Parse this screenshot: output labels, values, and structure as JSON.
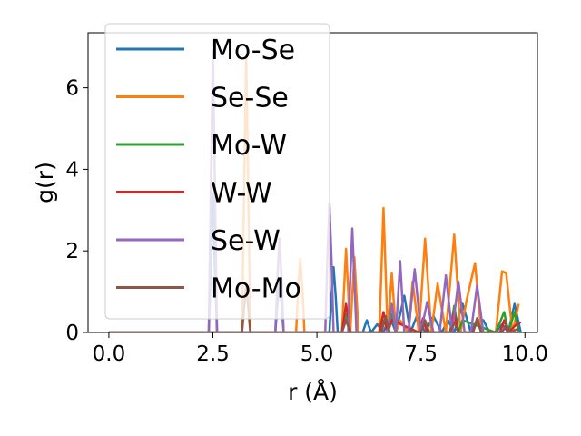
{
  "chart_data": {
    "type": "line",
    "xlabel": "r (Å)",
    "ylabel": "g(r)",
    "xlim": [
      -0.5,
      10.3
    ],
    "ylim": [
      0,
      7.35
    ],
    "xticks": [
      "0.0",
      "2.5",
      "5.0",
      "7.5",
      "10.0"
    ],
    "yticks": [
      "0",
      "2",
      "4",
      "6"
    ],
    "legend_position": "top-left",
    "grid": false,
    "series": [
      {
        "name": "Mo-Se",
        "color": "#1f77b4",
        "x": [
          0.0,
          2.4,
          2.45,
          2.5,
          2.55,
          2.6,
          4.0,
          4.05,
          4.1,
          4.15,
          4.2,
          5.3,
          5.35,
          5.4,
          5.45,
          5.5,
          6.1,
          6.2,
          6.3,
          6.45,
          6.6,
          6.75,
          6.9,
          7.1,
          7.25,
          7.4,
          7.6,
          7.8,
          8.0,
          8.15,
          8.3,
          8.5,
          8.7,
          8.85,
          9.0,
          9.15,
          9.3,
          9.45,
          9.6,
          9.75,
          9.9
        ],
        "y": [
          0,
          0,
          1.5,
          3.4,
          1.5,
          0,
          0,
          0.7,
          1.2,
          0.7,
          0,
          0,
          0.9,
          1.6,
          0.9,
          0,
          0,
          0.3,
          0,
          0.2,
          0,
          0.4,
          0,
          0.9,
          0,
          0.4,
          0,
          0.4,
          0,
          0.3,
          0,
          0.7,
          0,
          0.3,
          0.3,
          0,
          0,
          0.2,
          0,
          0.7,
          0
        ]
      },
      {
        "name": "Se-Se",
        "color": "#ff7f0e",
        "x": [
          0.0,
          3.2,
          3.25,
          3.3,
          3.35,
          3.4,
          4.5,
          4.55,
          4.6,
          4.65,
          4.7,
          5.6,
          5.7,
          5.8,
          5.9,
          6.0,
          6.5,
          6.6,
          6.7,
          6.8,
          6.9,
          7.0,
          7.2,
          7.3,
          7.45,
          7.6,
          7.75,
          7.9,
          8.1,
          8.3,
          8.45,
          8.6,
          8.8,
          8.95,
          9.1,
          9.3,
          9.45,
          9.55,
          9.7,
          9.85
        ],
        "y": [
          0,
          0,
          3.5,
          6.8,
          3.5,
          0,
          0,
          1.1,
          1.8,
          1.1,
          0,
          0,
          2.05,
          0,
          1.85,
          0,
          0,
          3.05,
          0,
          1.45,
          0,
          0.3,
          0,
          1.25,
          0,
          2.3,
          0,
          1.2,
          0,
          2.4,
          0,
          0.8,
          1.7,
          0,
          0,
          0,
          1.5,
          1.45,
          0,
          0.7
        ]
      },
      {
        "name": "Mo-W",
        "color": "#2ca02c",
        "x": [
          0.0,
          5.6,
          5.7,
          5.8,
          6.5,
          6.6,
          6.7,
          6.8,
          6.9,
          7.45,
          7.55,
          7.65,
          8.2,
          8.3,
          8.4,
          8.5,
          9.3,
          9.4,
          9.5,
          9.6,
          9.75,
          9.85
        ],
        "y": [
          0,
          0,
          0.45,
          0,
          0,
          0.3,
          0.1,
          0.45,
          0,
          0,
          0.3,
          0,
          0,
          0.65,
          0,
          0.3,
          0,
          0.25,
          0.5,
          0,
          0.5,
          0
        ]
      },
      {
        "name": "W-W",
        "color": "#d62728",
        "x": [
          0.0,
          5.6,
          5.7,
          5.8,
          6.5,
          6.6,
          6.7,
          6.8,
          7.45,
          7.55,
          7.65,
          8.2,
          8.3,
          8.4,
          8.75,
          8.85,
          8.95,
          9.4,
          9.5,
          9.6,
          9.8,
          9.9
        ],
        "y": [
          0,
          0,
          0.7,
          0,
          0,
          0.5,
          0,
          0.3,
          0,
          0.35,
          0,
          0,
          0.5,
          0,
          0,
          0.3,
          0,
          0,
          0.3,
          0,
          0.2,
          0.25
        ]
      },
      {
        "name": "Se-W",
        "color": "#9467bd",
        "x": [
          0.0,
          2.4,
          2.45,
          2.5,
          2.55,
          2.6,
          4.0,
          4.05,
          4.1,
          4.15,
          4.2,
          5.2,
          5.25,
          5.3,
          5.35,
          5.4,
          5.75,
          5.85,
          5.95,
          6.7,
          6.8,
          6.9,
          7.0,
          7.1,
          7.2,
          7.35,
          7.5,
          7.65,
          7.8,
          7.95,
          8.1,
          8.25,
          8.4,
          8.55,
          8.7,
          8.85,
          9.0
        ],
        "y": [
          0,
          0,
          3.5,
          6.9,
          3.5,
          0,
          0,
          1.3,
          2.3,
          1.3,
          0,
          0,
          1.8,
          3.15,
          1.8,
          0,
          0,
          2.55,
          0,
          0,
          0.7,
          0,
          1.75,
          0,
          0,
          1.55,
          0,
          0.75,
          0,
          0,
          1.4,
          0,
          1.25,
          0,
          0,
          1.15,
          0
        ]
      },
      {
        "name": "Mo-Mo",
        "color": "#8c564b",
        "x": [
          0.0,
          3.2,
          3.25,
          3.3,
          3.35,
          3.4,
          5.6,
          5.7,
          5.8,
          6.55,
          6.65,
          6.75,
          7.5,
          7.6,
          7.7,
          8.2,
          8.3,
          8.4,
          8.75,
          8.85,
          8.95,
          9.45,
          9.55,
          9.65,
          9.85
        ],
        "y": [
          0,
          0,
          0.6,
          1.15,
          0.6,
          0,
          0,
          0.3,
          0,
          0,
          0.4,
          0,
          0,
          0.3,
          0,
          0,
          0.25,
          0,
          0,
          0.35,
          0,
          0,
          0.2,
          0,
          0.1
        ]
      }
    ]
  }
}
